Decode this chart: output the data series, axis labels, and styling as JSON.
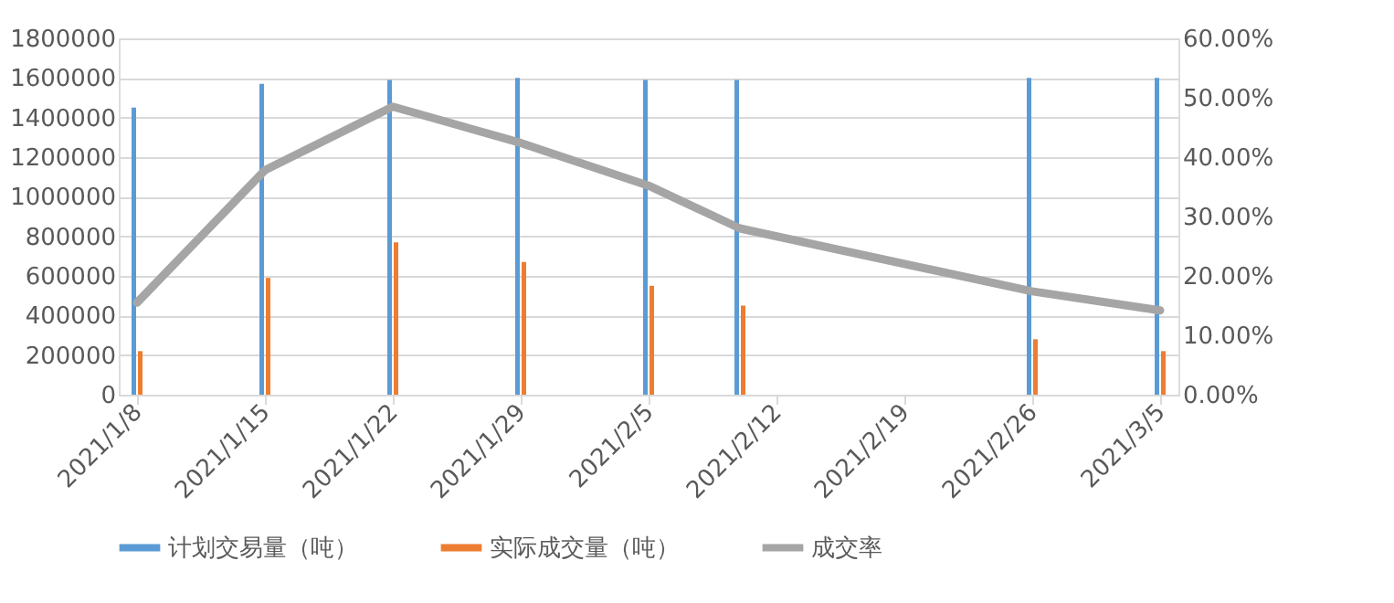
{
  "chart_data": {
    "type": "bar",
    "x": [
      "2021-01-08",
      "2021-01-15",
      "2021-01-22",
      "2021-01-29",
      "2021-02-05",
      "2021-02-10",
      "2021-02-26",
      "2021-03-05"
    ],
    "series": [
      {
        "name": "计划交易量（吨）",
        "color": "#5b9bd5",
        "values": [
          1450000,
          1570000,
          1590000,
          1600000,
          1590000,
          1590000,
          1600000,
          1600000
        ]
      },
      {
        "name": "实际成交量（吨）",
        "color": "#ed7d31",
        "values": [
          220000,
          590000,
          770000,
          670000,
          550000,
          450000,
          280000,
          220000
        ]
      },
      {
        "name": "成交率",
        "type": "line",
        "axis": "y2",
        "color": "#a5a5a5",
        "values": [
          15.5,
          37.8,
          48.5,
          42.4,
          35.2,
          28.0,
          17.4,
          14.2
        ]
      }
    ],
    "xlim": [
      "2021-01-07T12:00",
      "2021-03-05T12:00"
    ],
    "xticks": [
      {
        "value": "2021-01-08",
        "label": "2021/1/8"
      },
      {
        "value": "2021-01-15",
        "label": "2021/1/15"
      },
      {
        "value": "2021-01-22",
        "label": "2021/1/22"
      },
      {
        "value": "2021-01-29",
        "label": "2021/1/29"
      },
      {
        "value": "2021-02-05",
        "label": "2021/2/5"
      },
      {
        "value": "2021-02-12",
        "label": "2021/2/12"
      },
      {
        "value": "2021-02-19",
        "label": "2021/2/19"
      },
      {
        "value": "2021-02-26",
        "label": "2021/2/26"
      },
      {
        "value": "2021-03-05",
        "label": "2021/3/5"
      }
    ],
    "ylim": [
      0,
      1800000
    ],
    "yticks": [
      0,
      200000,
      400000,
      600000,
      800000,
      1000000,
      1200000,
      1400000,
      1600000,
      1800000
    ],
    "y2lim": [
      0,
      60
    ],
    "y2ticks": [
      {
        "value": 0,
        "label": "0.00%"
      },
      {
        "value": 10,
        "label": "10.00%"
      },
      {
        "value": 20,
        "label": "20.00%"
      },
      {
        "value": 30,
        "label": "30.00%"
      },
      {
        "value": 40,
        "label": "40.00%"
      },
      {
        "value": 50,
        "label": "50.00%"
      },
      {
        "value": 60,
        "label": "60.00%"
      }
    ],
    "grid": "y",
    "legend": "bottom",
    "marker": "none",
    "line_style": "solid"
  }
}
